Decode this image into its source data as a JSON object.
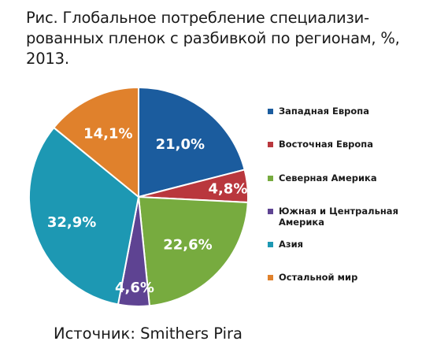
{
  "caption": "Рис. Глобальное потребление специализи-рованных пленок с разбивкой по регионам, %, 2013.",
  "source": "Источник: Smithers Pira",
  "chart_data": {
    "type": "pie",
    "title": "",
    "start_angle_deg": 0,
    "direction": "clockwise",
    "slices": [
      {
        "label": "Западная Европа",
        "value": 21.0,
        "value_label": "21,0%",
        "color": "#1b5c9e"
      },
      {
        "label": "Восточная Европа",
        "value": 4.8,
        "value_label": "4,8%",
        "color": "#b9373d"
      },
      {
        "label": "Северная Америка",
        "value": 22.6,
        "value_label": "22,6%",
        "color": "#77ab3f"
      },
      {
        "label": "Южная и Центральная Америка",
        "value": 4.6,
        "value_label": "4,6%",
        "color": "#5e4392"
      },
      {
        "label": "Азия",
        "value": 32.9,
        "value_label": "32,9%",
        "color": "#1d98b3"
      },
      {
        "label": "Остальной мир",
        "value": 14.1,
        "value_label": "14,1%",
        "color": "#e0812c"
      }
    ],
    "legend_position": "right"
  }
}
